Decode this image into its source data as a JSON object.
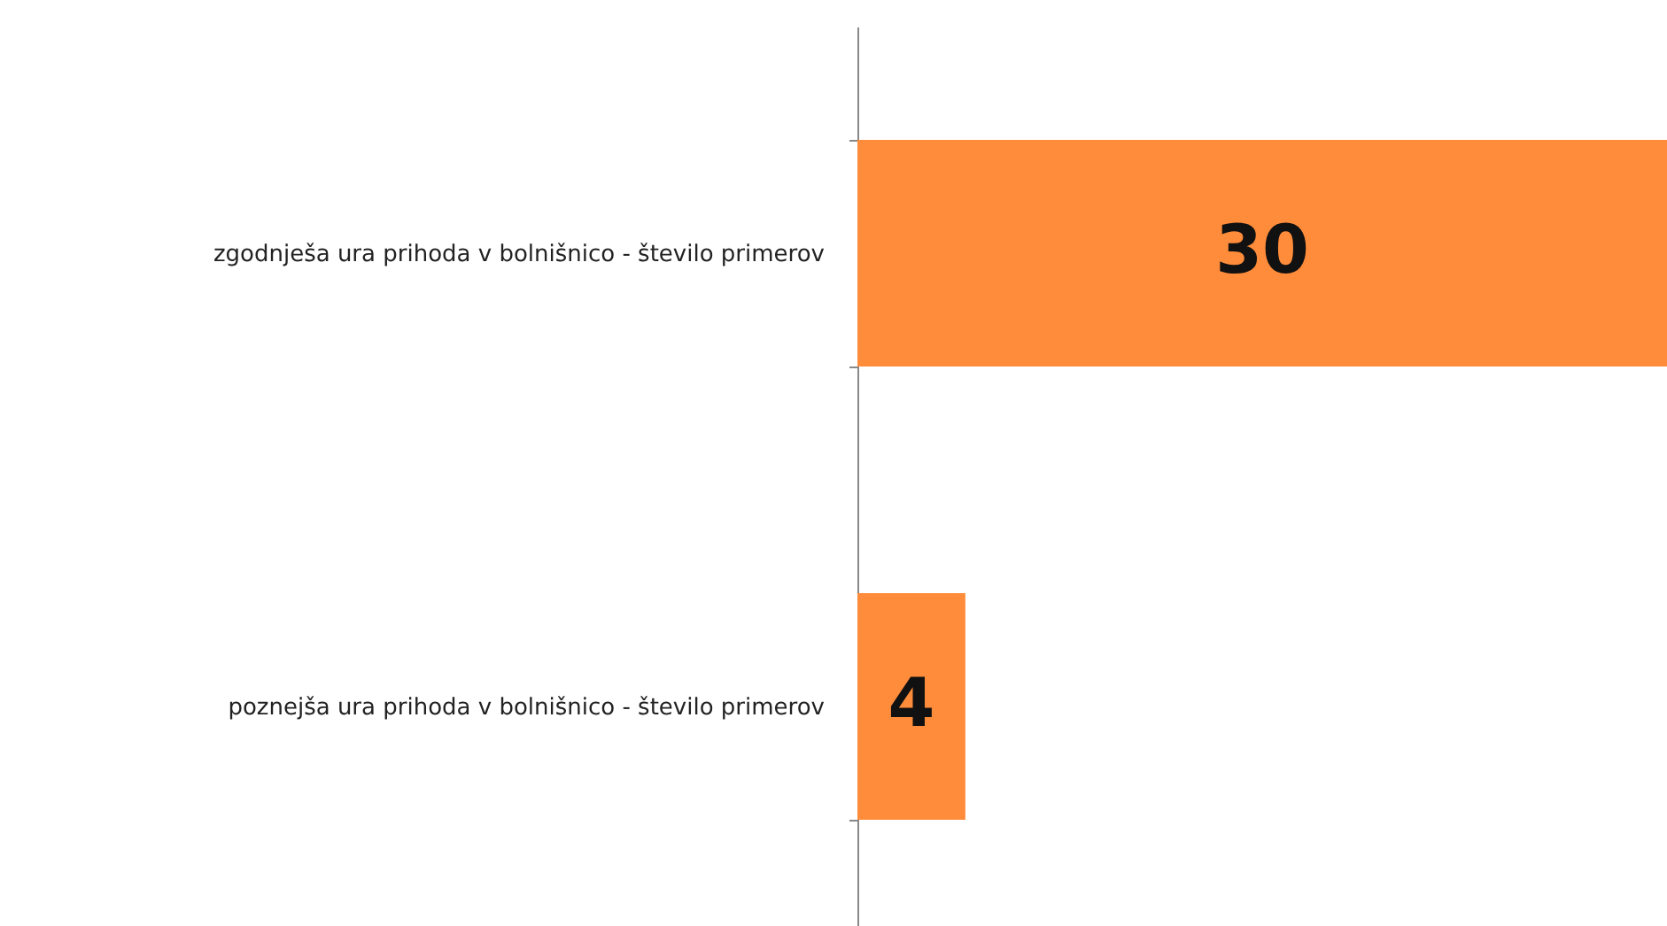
{
  "chart_data": {
    "type": "bar",
    "orientation": "horizontal",
    "categories": [
      "zgodnješa ura prihoda v bolnišnico - število primerov",
      "poznejša ura prihoda v bolnišnico - število primerov"
    ],
    "values": [
      30,
      4
    ],
    "color": "#ff8c3a",
    "data_labels": true
  }
}
